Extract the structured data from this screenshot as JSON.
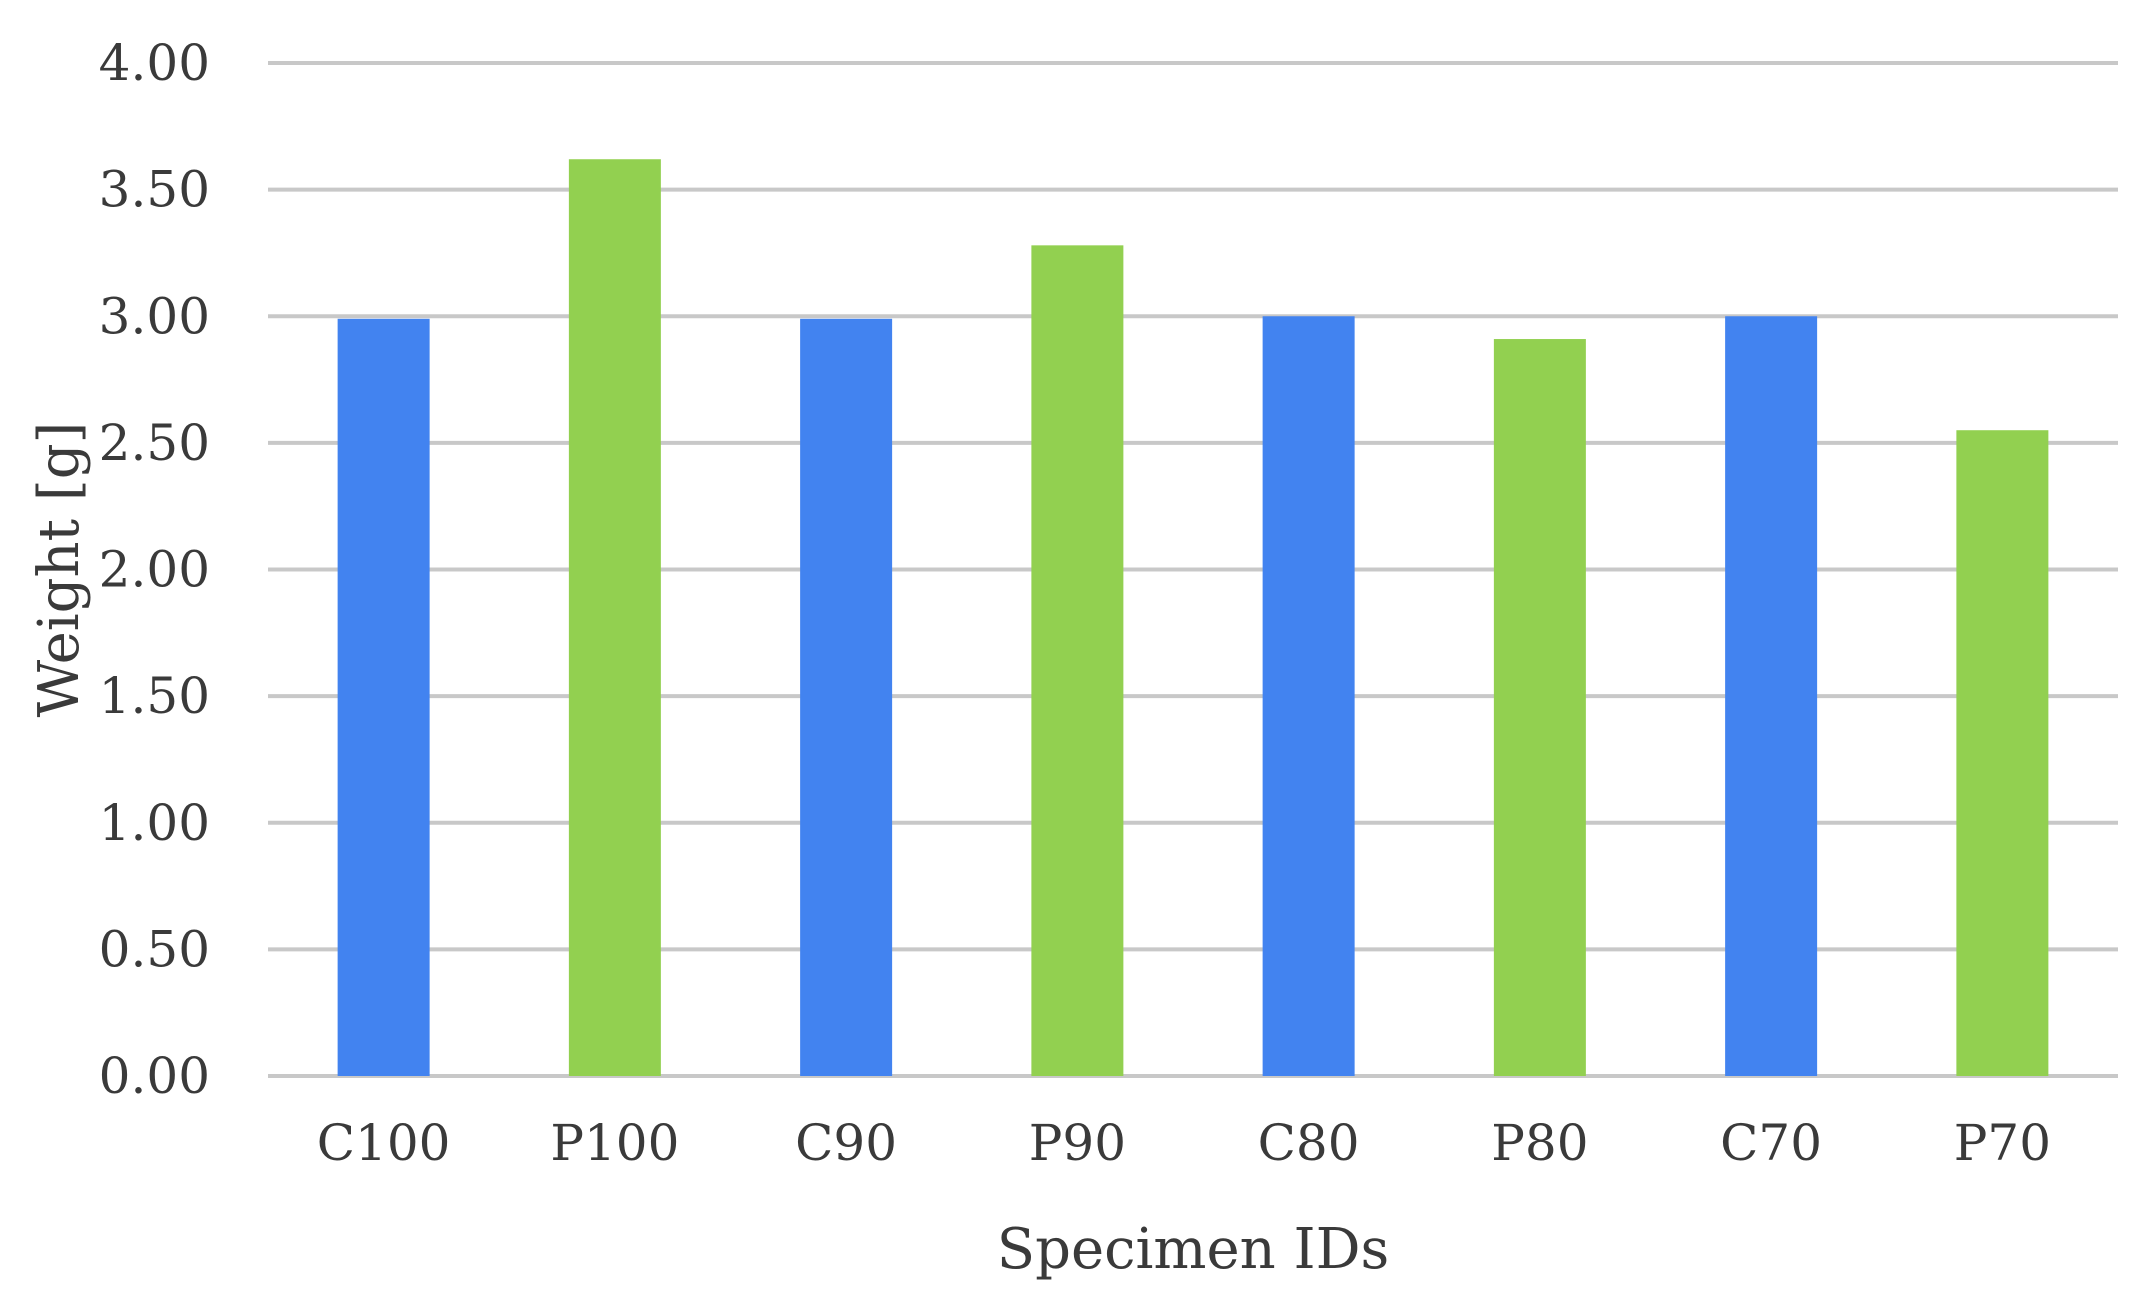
{
  "chart_data": {
    "type": "bar",
    "title": "",
    "xlabel": "Specimen IDs",
    "ylabel": "Weight [g]",
    "categories": [
      "C100",
      "P100",
      "C90",
      "P90",
      "C80",
      "P80",
      "C70",
      "P70"
    ],
    "values": [
      2.99,
      3.62,
      2.99,
      3.28,
      3.0,
      2.91,
      3.0,
      2.55
    ],
    "bar_colors": [
      "#4283f0",
      "#92d050",
      "#4283f0",
      "#92d050",
      "#4283f0",
      "#92d050",
      "#4283f0",
      "#92d050"
    ],
    "ylim": [
      0,
      4
    ],
    "yticks": [
      0,
      0.5,
      1,
      1.5,
      2,
      2.5,
      3,
      3.5,
      4
    ],
    "ytick_labels": [
      "0.00",
      "0.50",
      "1.00",
      "1.50",
      "2.00",
      "2.50",
      "3.00",
      "3.50",
      "4.00"
    ],
    "grid": true,
    "gridline_color": "#c8c8c8",
    "legend": "none"
  }
}
